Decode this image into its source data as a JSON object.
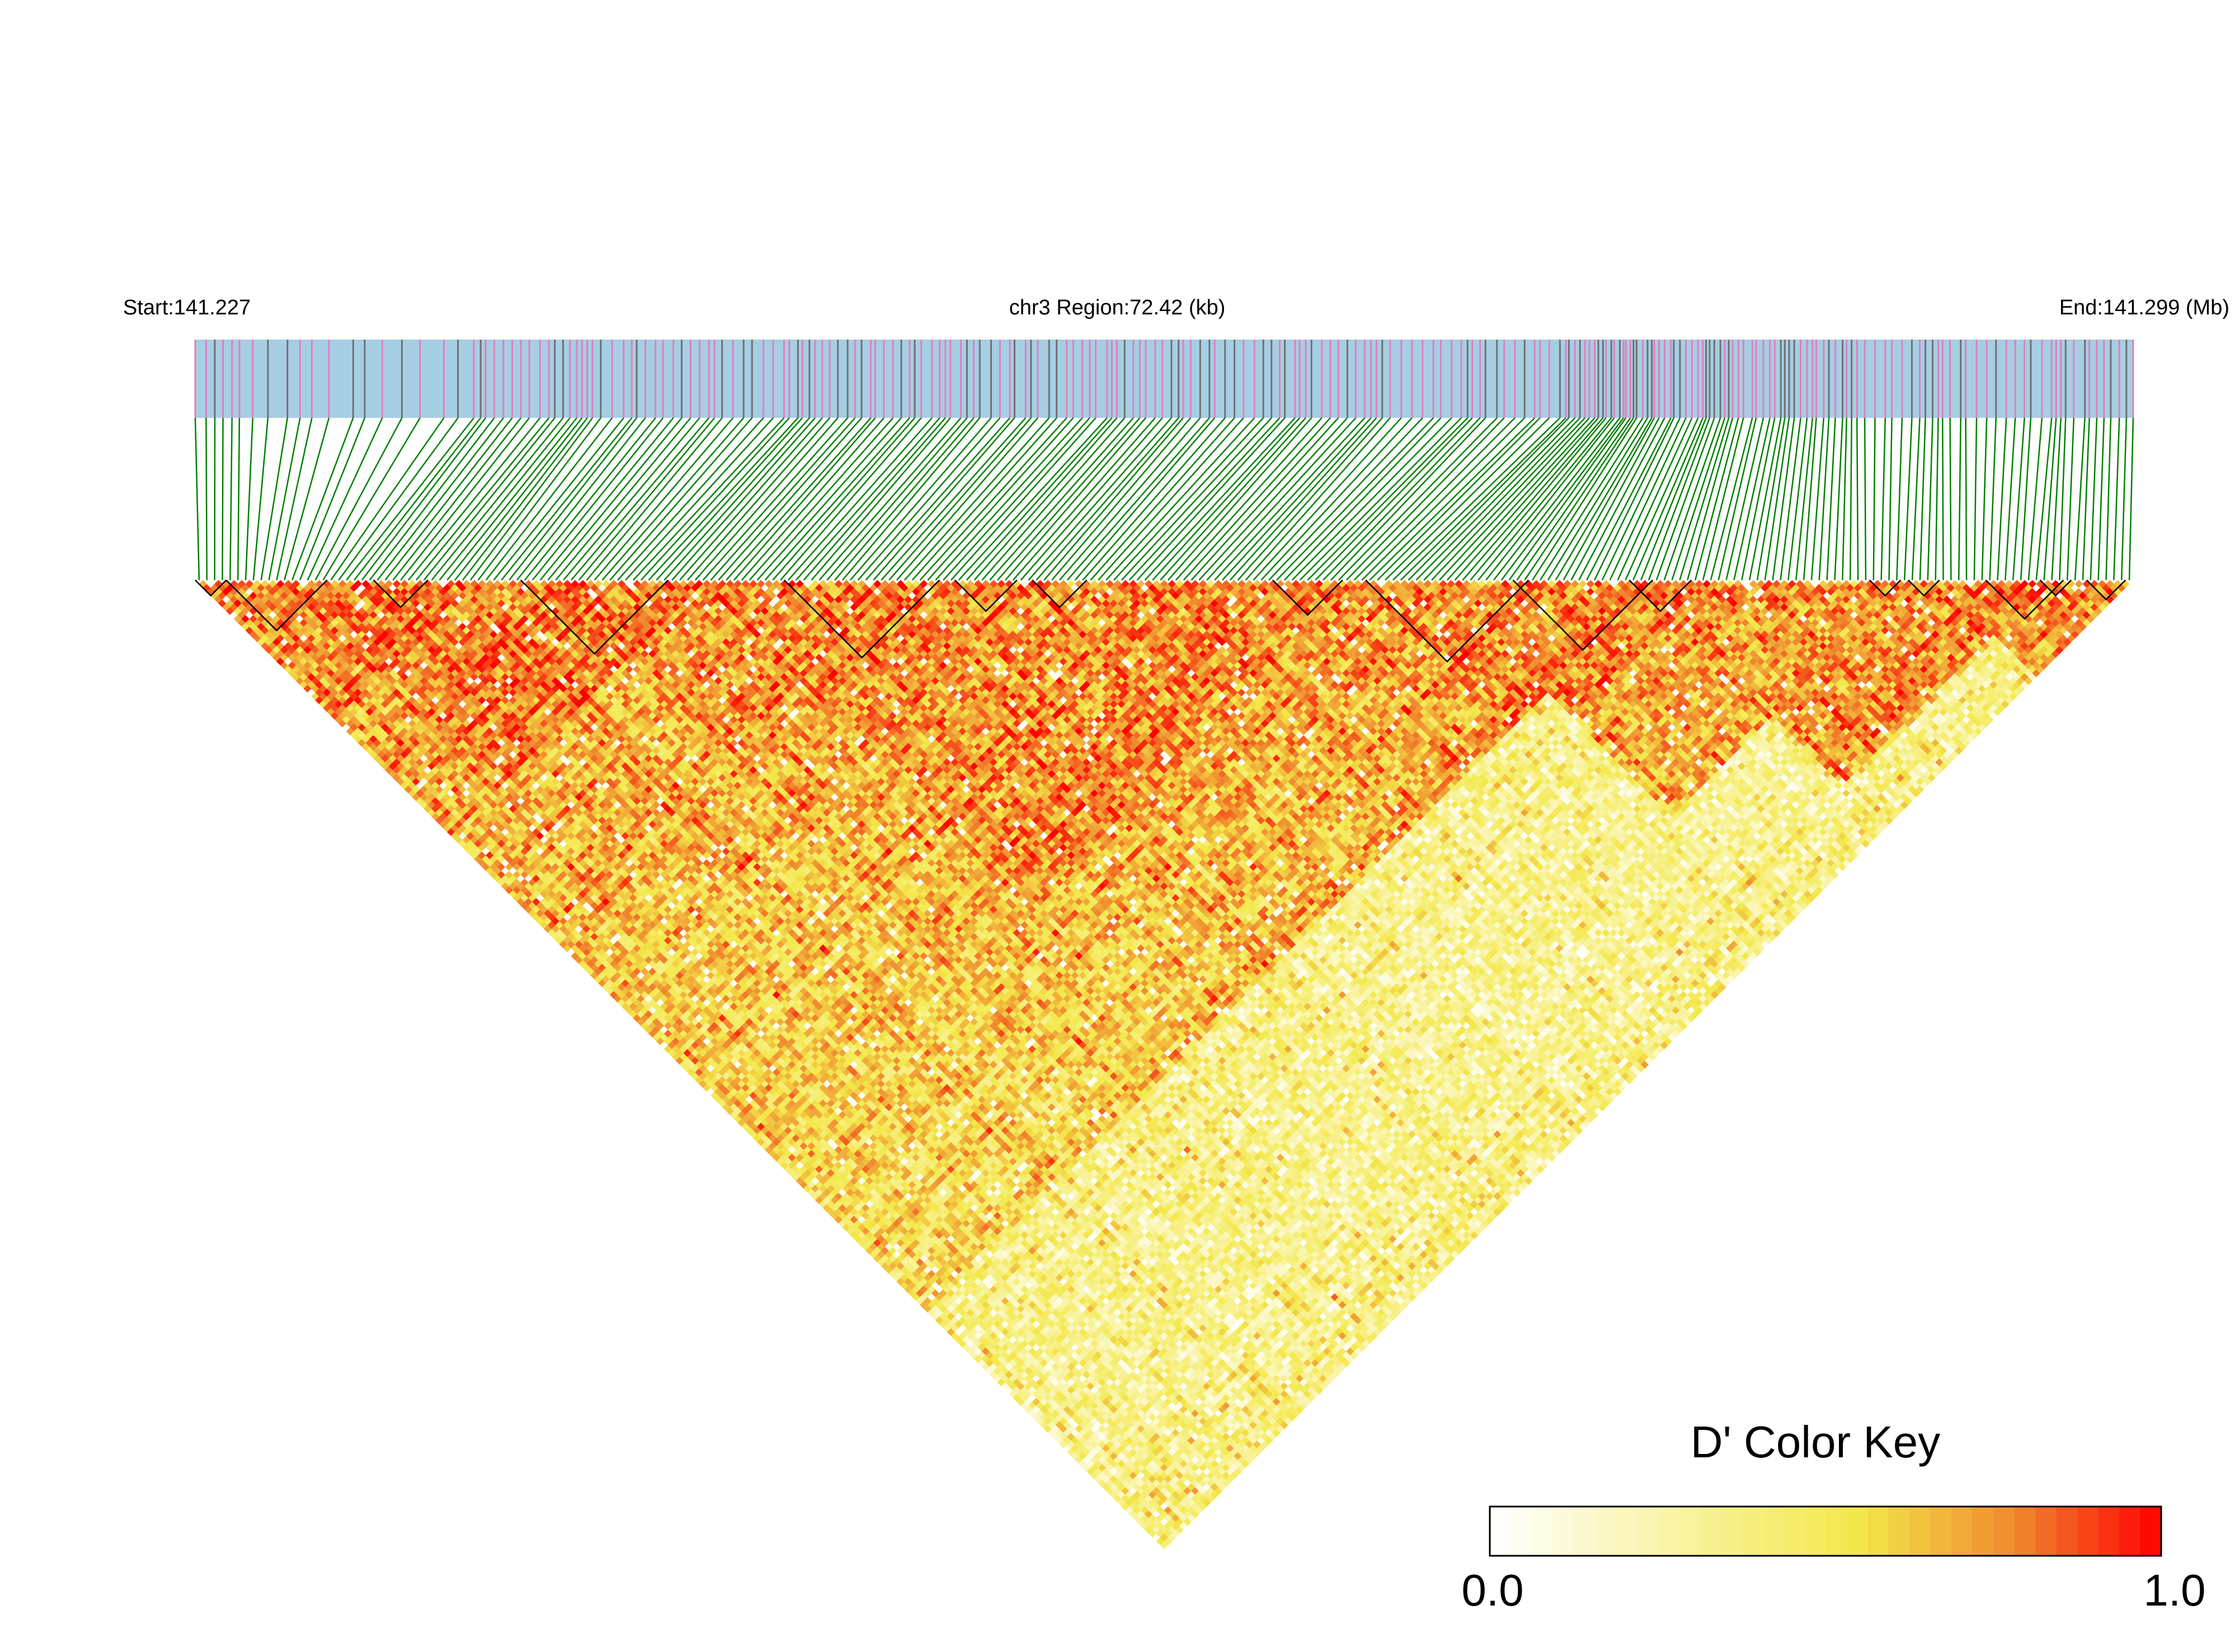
{
  "chart_data": {
    "type": "heatmap",
    "subtype": "linkage-disequilibrium-triangle",
    "region": {
      "start_label": "Start:141.227",
      "center_label": "chr3 Region:72.42 (kb)",
      "end_label": "End:141.299 (Mb)",
      "chromosome": "chr3",
      "start_mb": 141.227,
      "end_mb": 141.299,
      "span_kb": 72.42
    },
    "metric": "D'",
    "color_key": {
      "title": "D' Color Key",
      "min_label": "0.0",
      "max_label": "1.0",
      "min": 0.0,
      "max": 1.0,
      "gradient": [
        "#ffffff",
        "#f3e84a",
        "#f08a2f",
        "#ff0000"
      ]
    },
    "snp_count": 250,
    "haplotype_blocks_snp_ranges": [
      [
        0,
        3
      ],
      [
        4,
        16
      ],
      [
        23,
        29
      ],
      [
        42,
        60
      ],
      [
        76,
        95
      ],
      [
        98,
        105
      ],
      [
        108,
        114
      ],
      [
        139,
        147
      ],
      [
        151,
        171
      ],
      [
        170,
        187
      ],
      [
        185,
        192
      ],
      [
        216,
        219
      ],
      [
        221,
        224
      ],
      [
        231,
        240
      ],
      [
        238,
        241
      ],
      [
        244,
        248
      ]
    ],
    "colors": {
      "track_bg": "#a6cee3",
      "snp_tick_pink": "#e07fbf",
      "snp_tick_gray": "#707070",
      "connector_green": "#008000",
      "block_outline": "#000000"
    }
  }
}
